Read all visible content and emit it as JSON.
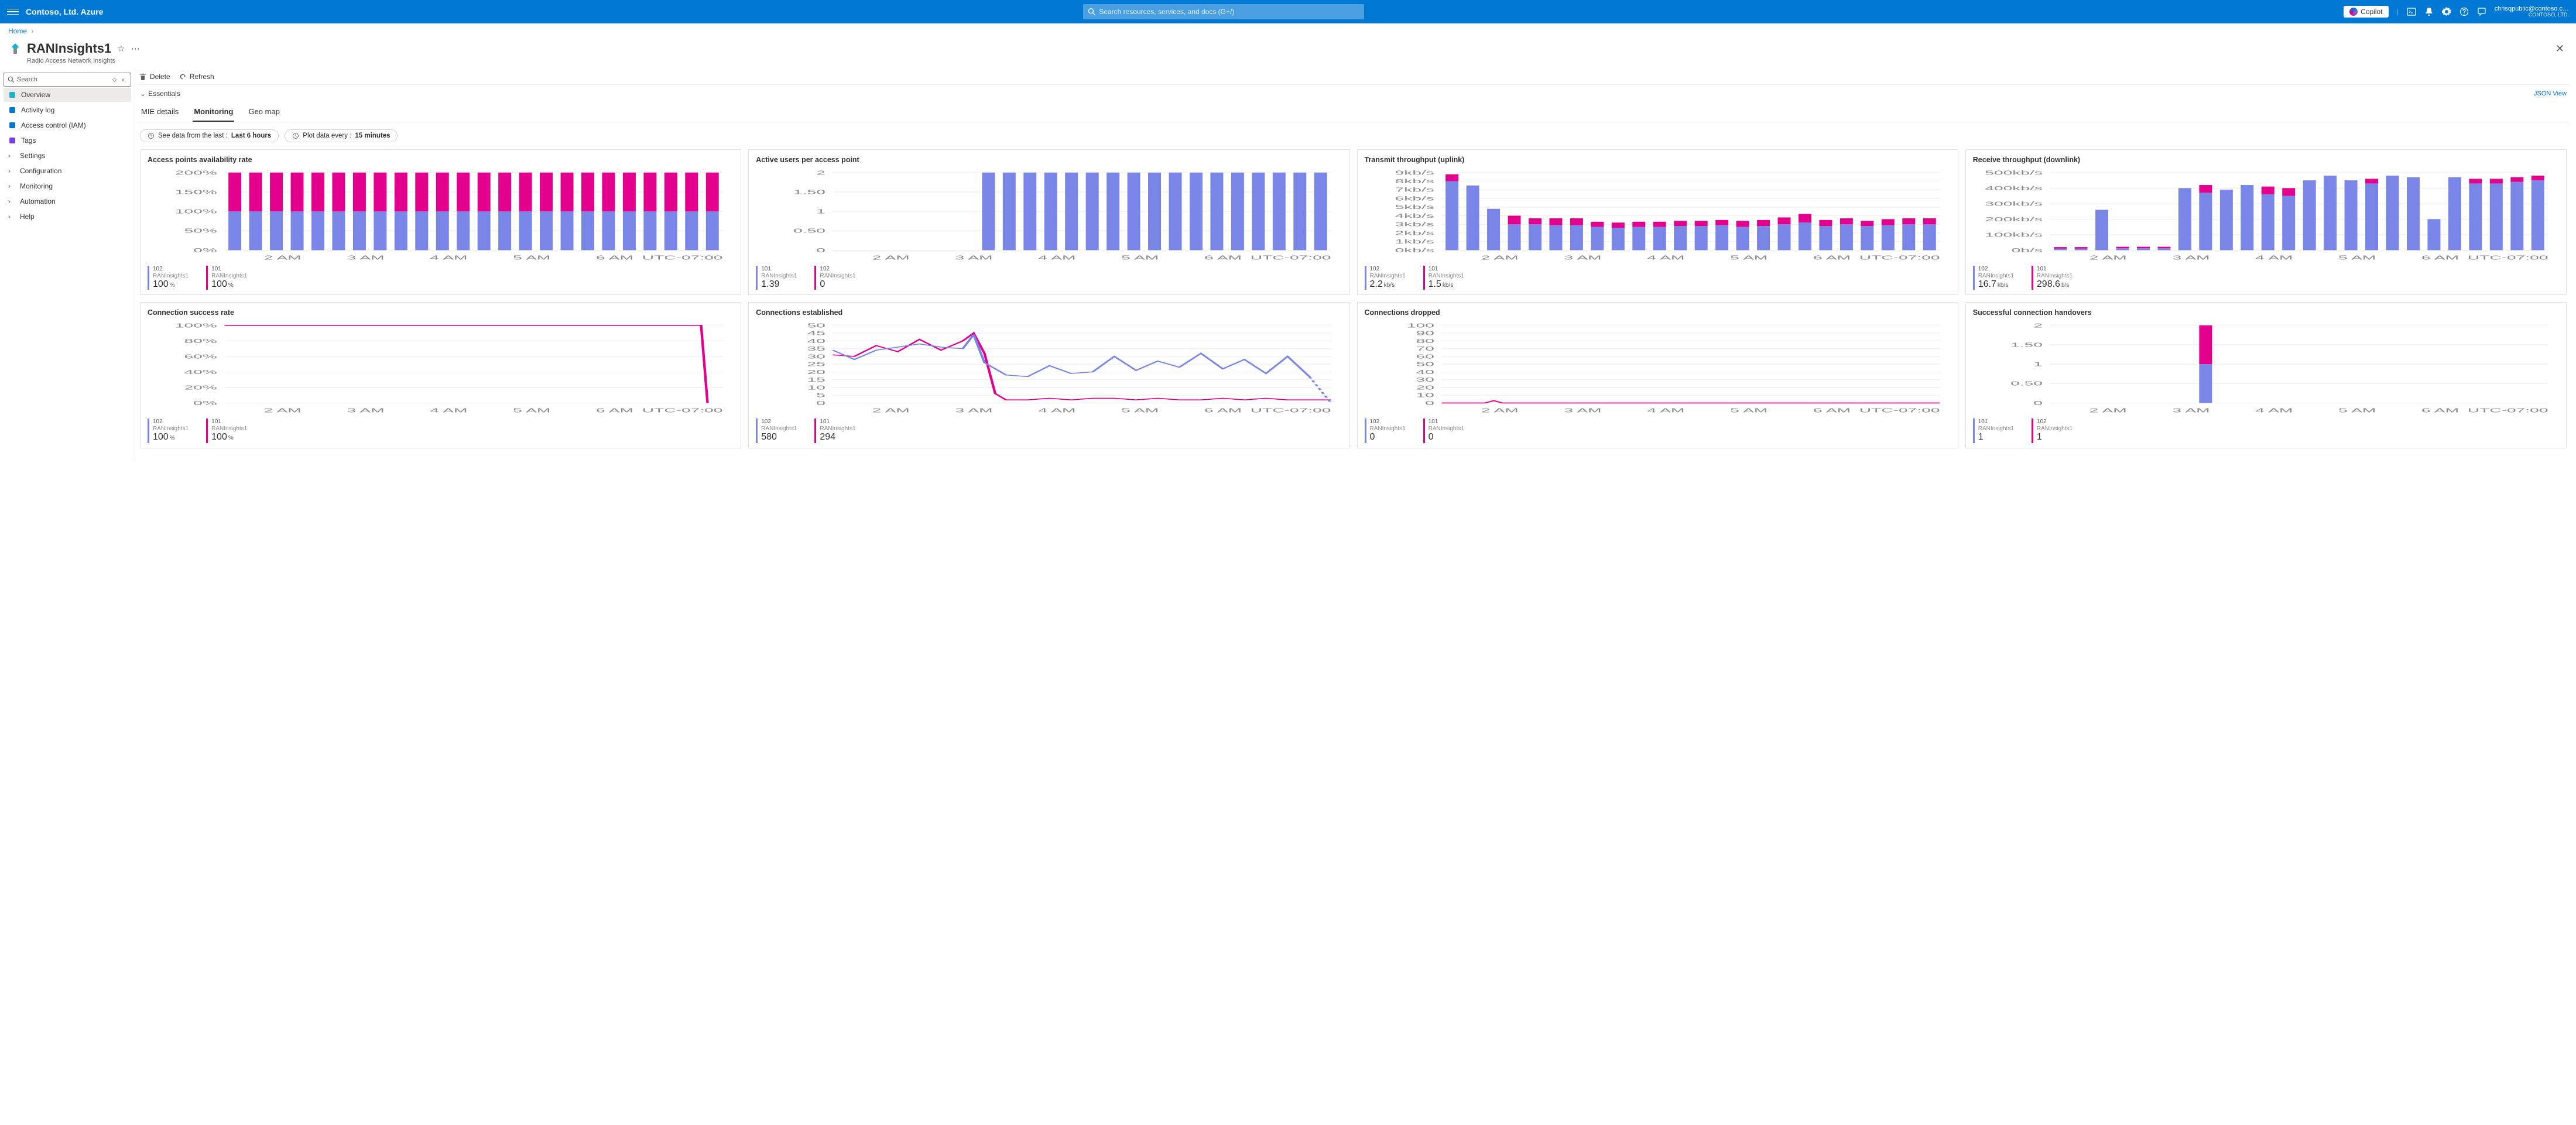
{
  "header": {
    "brand": "Contoso, Ltd. Azure",
    "search_placeholder": "Search resources, services, and docs (G+/)",
    "copilot": "Copilot",
    "account_email": "chrisqpublic@contoso.c…",
    "account_dir": "CONTOSO, LTD."
  },
  "crumbs": {
    "home": "Home"
  },
  "resource": {
    "title": "RANInsights1",
    "subtitle": "Radio Access Network Insights"
  },
  "nav": {
    "search_placeholder": "Search",
    "items": [
      {
        "label": "Overview",
        "icon": "overview",
        "active": true,
        "expandable": false,
        "color": "#1cb4c7"
      },
      {
        "label": "Activity log",
        "icon": "log",
        "active": false,
        "expandable": false,
        "color": "#0078d4"
      },
      {
        "label": "Access control (IAM)",
        "icon": "iam",
        "active": false,
        "expandable": false,
        "color": "#0078d4"
      },
      {
        "label": "Tags",
        "icon": "tags",
        "active": false,
        "expandable": false,
        "color": "#7b3ff2"
      },
      {
        "label": "Settings",
        "icon": "",
        "active": false,
        "expandable": true
      },
      {
        "label": "Configuration",
        "icon": "",
        "active": false,
        "expandable": true
      },
      {
        "label": "Monitoring",
        "icon": "",
        "active": false,
        "expandable": true
      },
      {
        "label": "Automation",
        "icon": "",
        "active": false,
        "expandable": true
      },
      {
        "label": "Help",
        "icon": "",
        "active": false,
        "expandable": true
      }
    ]
  },
  "commands": {
    "delete": "Delete",
    "refresh": "Refresh"
  },
  "essentials_label": "Essentials",
  "json_view": "JSON View",
  "tabs": [
    {
      "label": "MIE details",
      "active": false
    },
    {
      "label": "Monitoring",
      "active": true
    },
    {
      "label": "Geo map",
      "active": false
    }
  ],
  "pills": {
    "range_prefix": "See data from the last :",
    "range_value": "Last 6 hours",
    "gran_prefix": "Plot data every :",
    "gran_value": "15 minutes"
  },
  "colors": {
    "blue": "#7986e7",
    "pink": "#e3008c",
    "grid": "#eeeeee",
    "axis": "#888888"
  },
  "xaxis": {
    "labels": [
      "2 AM",
      "3 AM",
      "4 AM",
      "5 AM",
      "6 AM"
    ],
    "tz": "UTC-07:00"
  },
  "charts": [
    {
      "title": "Access points availability rate",
      "type": "stacked-bar",
      "yticks": [
        "0%",
        "50%",
        "100%",
        "150%",
        "200%"
      ],
      "ymax": 200,
      "bars": 24,
      "values": {
        "blue": [
          100,
          100,
          100,
          100,
          100,
          100,
          100,
          100,
          100,
          100,
          100,
          100,
          100,
          100,
          100,
          100,
          100,
          100,
          100,
          100,
          100,
          100,
          100,
          100
        ],
        "pink": [
          100,
          100,
          100,
          100,
          100,
          100,
          100,
          100,
          100,
          100,
          100,
          100,
          100,
          100,
          100,
          100,
          100,
          100,
          100,
          100,
          100,
          100,
          100,
          100
        ]
      },
      "legend": [
        {
          "series": "102",
          "src": "RANInsights1",
          "value": "100",
          "unit": "%",
          "color": "blue"
        },
        {
          "series": "101",
          "src": "RANInsights1",
          "value": "100",
          "unit": "%",
          "color": "pink"
        }
      ]
    },
    {
      "title": "Active users per access point",
      "type": "stacked-bar",
      "yticks": [
        "0",
        "0.50",
        "1",
        "1.50",
        "2"
      ],
      "ymax": 2,
      "bars": 24,
      "values": {
        "blue": [
          0,
          0,
          0,
          0,
          0,
          0,
          0,
          2,
          2,
          2,
          2,
          2,
          2,
          2,
          2,
          2,
          2,
          2,
          2,
          2,
          2,
          2,
          2,
          2
        ],
        "pink": [
          0,
          0,
          0,
          0,
          0,
          0,
          0,
          0,
          0,
          0,
          0,
          0,
          0,
          0,
          0,
          0,
          0,
          0,
          0,
          0,
          0,
          0,
          0,
          0
        ]
      },
      "legend": [
        {
          "series": "101",
          "src": "RANInsights1",
          "value": "1.39",
          "unit": "",
          "color": "blue"
        },
        {
          "series": "102",
          "src": "RANInsights1",
          "value": "0",
          "unit": "",
          "color": "pink"
        }
      ]
    },
    {
      "title": "Transmit throughput (uplink)",
      "type": "stacked-bar",
      "yticks": [
        "0kb/s",
        "1kb/s",
        "2kb/s",
        "3kb/s",
        "4kb/s",
        "5kb/s",
        "6kb/s",
        "7kb/s",
        "8kb/s",
        "9kb/s"
      ],
      "ymax": 9,
      "bars": 24,
      "values": {
        "blue": [
          8.0,
          7.5,
          4.8,
          3.0,
          3.0,
          2.9,
          2.9,
          2.7,
          2.6,
          2.7,
          2.7,
          2.8,
          2.8,
          2.9,
          2.7,
          2.8,
          3.0,
          3.2,
          2.8,
          3.0,
          2.8,
          2.9,
          3.0,
          3.0
        ],
        "pink": [
          0.8,
          0.0,
          0.0,
          1.0,
          0.7,
          0.8,
          0.8,
          0.6,
          0.6,
          0.6,
          0.6,
          0.6,
          0.6,
          0.6,
          0.7,
          0.7,
          0.8,
          1.0,
          0.7,
          0.7,
          0.6,
          0.7,
          0.7,
          0.7
        ]
      },
      "legend": [
        {
          "series": "102",
          "src": "RANInsights1",
          "value": "2.2",
          "unit": "kb/s",
          "color": "blue"
        },
        {
          "series": "101",
          "src": "RANInsights1",
          "value": "1.5",
          "unit": "kb/s",
          "color": "pink"
        }
      ]
    },
    {
      "title": "Receive throughput (downlink)",
      "type": "stacked-bar",
      "yticks": [
        "0b/s",
        "100kb/s",
        "200kb/s",
        "300kb/s",
        "400kb/s",
        "500kb/s"
      ],
      "ymax": 500,
      "bars": 24,
      "values": {
        "blue": [
          10,
          10,
          260,
          12,
          12,
          12,
          400,
          370,
          390,
          420,
          360,
          350,
          450,
          480,
          450,
          430,
          480,
          470,
          200,
          470,
          430,
          430,
          440,
          450
        ],
        "pink": [
          10,
          10,
          0,
          10,
          10,
          10,
          0,
          50,
          0,
          0,
          50,
          50,
          0,
          0,
          0,
          30,
          0,
          0,
          0,
          0,
          30,
          30,
          30,
          30
        ]
      },
      "legend": [
        {
          "series": "102",
          "src": "RANInsights1",
          "value": "16.7",
          "unit": "kb/s",
          "color": "blue"
        },
        {
          "series": "101",
          "src": "RANInsights1",
          "value": "298.6",
          "unit": "b/s",
          "color": "pink"
        }
      ]
    },
    {
      "title": "Connection success rate",
      "type": "line",
      "yticks": [
        "0%",
        "20%",
        "40%",
        "60%",
        "80%",
        "100%"
      ],
      "ymax": 100,
      "series": [
        {
          "color": "pink",
          "dashed": false,
          "pts": [
            [
              0,
              100
            ],
            [
              1,
              100
            ],
            [
              2,
              100
            ],
            [
              3,
              100
            ],
            [
              4,
              100
            ],
            [
              5,
              100
            ],
            [
              6,
              100
            ],
            [
              7,
              100
            ],
            [
              8,
              100
            ],
            [
              9,
              100
            ],
            [
              10,
              100
            ],
            [
              11,
              100
            ],
            [
              12,
              100
            ],
            [
              13,
              100
            ],
            [
              14,
              100
            ],
            [
              15,
              100
            ],
            [
              16,
              100
            ],
            [
              17,
              100
            ],
            [
              18,
              100
            ],
            [
              19,
              100
            ],
            [
              20,
              100
            ],
            [
              21,
              100
            ],
            [
              22,
              100
            ],
            [
              22.3,
              0
            ]
          ]
        }
      ],
      "legend": [
        {
          "series": "102",
          "src": "RANInsights1",
          "value": "100",
          "unit": "%",
          "color": "blue"
        },
        {
          "series": "101",
          "src": "RANInsights1",
          "value": "100",
          "unit": "%",
          "color": "pink"
        }
      ]
    },
    {
      "title": "Connections established",
      "type": "line",
      "yticks": [
        "0",
        "5",
        "10",
        "15",
        "20",
        "25",
        "30",
        "35",
        "40",
        "45",
        "50"
      ],
      "ymax": 50,
      "series": [
        {
          "color": "pink",
          "dashed": false,
          "pts": [
            [
              0,
              31
            ],
            [
              1,
              30
            ],
            [
              2,
              37
            ],
            [
              3,
              33
            ],
            [
              4,
              41
            ],
            [
              5,
              34
            ],
            [
              6,
              40
            ],
            [
              6.5,
              45
            ],
            [
              7,
              32
            ],
            [
              7.5,
              6
            ],
            [
              8,
              2
            ],
            [
              9,
              2
            ],
            [
              10,
              3
            ],
            [
              11,
              2
            ],
            [
              12,
              3
            ],
            [
              13,
              3
            ],
            [
              14,
              2
            ],
            [
              15,
              3
            ],
            [
              16,
              2
            ],
            [
              17,
              2
            ],
            [
              18,
              3
            ],
            [
              19,
              2
            ],
            [
              20,
              3
            ],
            [
              21,
              2
            ],
            [
              22,
              2
            ],
            [
              23,
              2
            ]
          ]
        },
        {
          "color": "blue",
          "dashed": false,
          "pts": [
            [
              0,
              34
            ],
            [
              1,
              28
            ],
            [
              2,
              34
            ],
            [
              3,
              36
            ],
            [
              4,
              38
            ],
            [
              5,
              36
            ],
            [
              6,
              35
            ],
            [
              6.5,
              44
            ],
            [
              7,
              26
            ],
            [
              8,
              18
            ],
            [
              9,
              17
            ],
            [
              10,
              24
            ],
            [
              11,
              19
            ],
            [
              12,
              20
            ],
            [
              13,
              30
            ],
            [
              14,
              21
            ],
            [
              15,
              27
            ],
            [
              16,
              23
            ],
            [
              17,
              32
            ],
            [
              18,
              22
            ],
            [
              19,
              28
            ],
            [
              20,
              19
            ],
            [
              21,
              30
            ],
            [
              22,
              17
            ]
          ]
        },
        {
          "color": "blue",
          "dashed": true,
          "pts": [
            [
              22,
              17
            ],
            [
              23,
              0
            ]
          ]
        }
      ],
      "legend": [
        {
          "series": "102",
          "src": "RANInsights1",
          "value": "580",
          "unit": "",
          "color": "blue"
        },
        {
          "series": "101",
          "src": "RANInsights1",
          "value": "294",
          "unit": "",
          "color": "pink"
        }
      ]
    },
    {
      "title": "Connections dropped",
      "type": "line",
      "yticks": [
        "0",
        "10",
        "20",
        "30",
        "40",
        "50",
        "60",
        "70",
        "80",
        "90",
        "100"
      ],
      "ymax": 100,
      "series": [
        {
          "color": "pink",
          "dashed": false,
          "pts": [
            [
              0,
              0
            ],
            [
              2,
              0
            ],
            [
              2.4,
              3
            ],
            [
              2.8,
              0
            ],
            [
              23,
              0
            ]
          ]
        }
      ],
      "legend": [
        {
          "series": "102",
          "src": "RANInsights1",
          "value": "0",
          "unit": "",
          "color": "blue"
        },
        {
          "series": "101",
          "src": "RANInsights1",
          "value": "0",
          "unit": "",
          "color": "pink"
        }
      ]
    },
    {
      "title": "Successful connection handovers",
      "type": "stacked-bar",
      "yticks": [
        "0",
        "0.50",
        "1",
        "1.50",
        "2"
      ],
      "ymax": 2,
      "bars": 24,
      "values": {
        "blue": [
          0,
          0,
          0,
          0,
          0,
          0,
          0,
          1,
          0,
          0,
          0,
          0,
          0,
          0,
          0,
          0,
          0,
          0,
          0,
          0,
          0,
          0,
          0,
          0
        ],
        "pink": [
          0,
          0,
          0,
          0,
          0,
          0,
          0,
          1,
          0,
          0,
          0,
          0,
          0,
          0,
          0,
          0,
          0,
          0,
          0,
          0,
          0,
          0,
          0,
          0
        ]
      },
      "legend": [
        {
          "series": "101",
          "src": "RANInsights1",
          "value": "1",
          "unit": "",
          "color": "blue"
        },
        {
          "series": "102",
          "src": "RANInsights1",
          "value": "1",
          "unit": "",
          "color": "pink"
        }
      ]
    }
  ]
}
